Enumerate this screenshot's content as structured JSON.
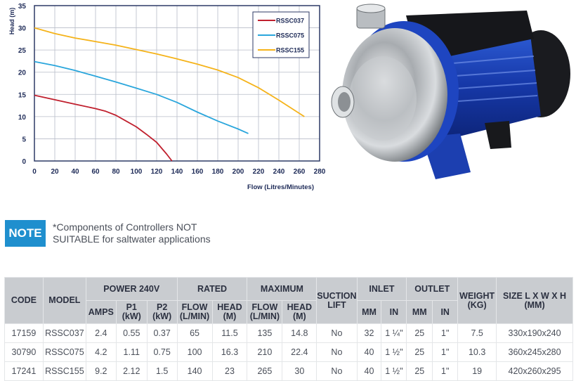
{
  "chart_data": {
    "type": "line",
    "title": "",
    "xlabel": "Flow (Litres/Minutes)",
    "ylabel": "Head (m)",
    "xlim": [
      0,
      280
    ],
    "ylim": [
      0,
      35
    ],
    "x_ticks": [
      "0",
      "20",
      "40",
      "60",
      "80",
      "100",
      "120",
      "140",
      "160",
      "180",
      "200",
      "220",
      "240",
      "260",
      "280"
    ],
    "y_ticks": [
      "0",
      "5",
      "10",
      "15",
      "20",
      "25",
      "30",
      "35"
    ],
    "grid": true,
    "legend_position": "upper right",
    "series": [
      {
        "name": "RSSC037",
        "color": "#c0202e",
        "x": [
          0,
          20,
          40,
          60,
          70,
          80,
          90,
          100,
          110,
          120,
          130,
          135
        ],
        "y": [
          14.8,
          13.8,
          12.8,
          11.8,
          11.2,
          10.3,
          9.0,
          7.7,
          6.0,
          4.2,
          1.5,
          0
        ]
      },
      {
        "name": "RSSC075",
        "color": "#2aa6dc",
        "x": [
          0,
          20,
          40,
          60,
          80,
          100,
          120,
          140,
          160,
          180,
          200,
          210
        ],
        "y": [
          22.4,
          21.5,
          20.4,
          19.1,
          17.8,
          16.4,
          15.0,
          13.2,
          11.0,
          9.0,
          7.2,
          6.2
        ]
      },
      {
        "name": "RSSC155",
        "color": "#f5b31a",
        "x": [
          0,
          20,
          40,
          60,
          80,
          100,
          120,
          140,
          160,
          180,
          200,
          220,
          240,
          265
        ],
        "y": [
          30,
          28.7,
          27.7,
          26.9,
          26.1,
          25.1,
          24.1,
          23.0,
          21.8,
          20.5,
          18.8,
          16.5,
          13.7,
          10.0
        ]
      }
    ]
  },
  "product_image": {
    "alt": "Stainless steel centrifugal pump with blue motor"
  },
  "note": {
    "badge": "NOTE",
    "line1": "*Components of Controllers NOT",
    "line2": "SUITABLE for saltwater applications"
  },
  "table": {
    "headers": {
      "code": "CODE",
      "model": "MODEL",
      "power": "POWER 240V",
      "rated": "RATED",
      "maximum": "MAXIMUM",
      "suction": "SUCTION LIFT",
      "inlet": "INLET",
      "outlet": "OUTLET",
      "weight": "WEIGHT (KG)",
      "size": "SIZE L X W X H (MM)",
      "amps": "AMPS",
      "p1": "P1 (kW)",
      "p2": "P2 (kW)",
      "rated_flow": "FLOW (L/MIN)",
      "rated_head": "HEAD (M)",
      "max_flow": "FLOW (L/MIN)",
      "max_head": "HEAD (M)",
      "inlet_mm": "MM",
      "inlet_in": "IN",
      "outlet_mm": "MM",
      "outlet_in": "IN"
    },
    "rows": [
      {
        "code": "17159",
        "model": "RSSC037",
        "amps": "2.4",
        "p1": "0.55",
        "p2": "0.37",
        "rated_flow": "65",
        "rated_head": "11.5",
        "max_flow": "135",
        "max_head": "14.8",
        "suction": "No",
        "inlet_mm": "32",
        "inlet_in": "1 ¼\"",
        "outlet_mm": "25",
        "outlet_in": "1\"",
        "weight": "7.5",
        "size": "330x190x240"
      },
      {
        "code": "30790",
        "model": "RSSC075",
        "amps": "4.2",
        "p1": "1.11",
        "p2": "0.75",
        "rated_flow": "100",
        "rated_head": "16.3",
        "max_flow": "210",
        "max_head": "22.4",
        "suction": "No",
        "inlet_mm": "40",
        "inlet_in": "1 ½\"",
        "outlet_mm": "25",
        "outlet_in": "1\"",
        "weight": "10.3",
        "size": "360x245x280"
      },
      {
        "code": "17241",
        "model": "RSSC155",
        "amps": "9.2",
        "p1": "2.12",
        "p2": "1.5",
        "rated_flow": "140",
        "rated_head": "23",
        "max_flow": "265",
        "max_head": "30",
        "suction": "No",
        "inlet_mm": "40",
        "inlet_in": "1 ½\"",
        "outlet_mm": "25",
        "outlet_in": "1\"",
        "weight": "19",
        "size": "420x260x295"
      }
    ]
  }
}
